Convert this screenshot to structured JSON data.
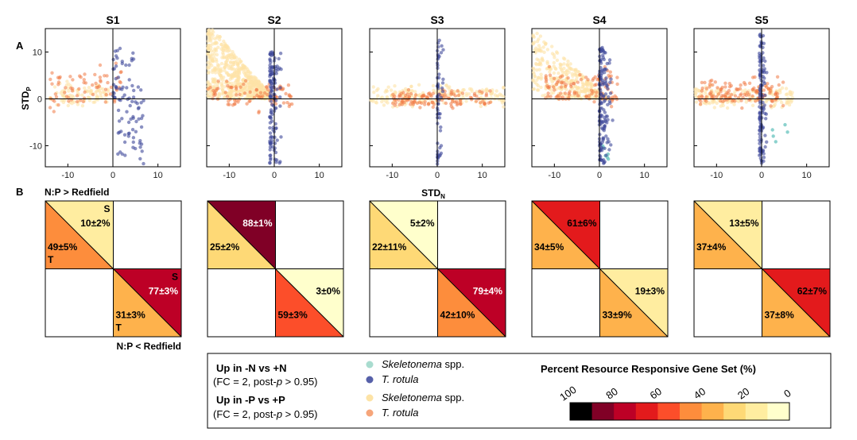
{
  "figure": {
    "panel_a_label": "A",
    "panel_b_label": "B",
    "x_axis_label": "STD",
    "x_axis_sub": "N",
    "y_axis_label": "STD",
    "y_axis_sub": "P",
    "heat_top_label": "N:P > Redfield",
    "heat_bottom_label": "N:P < Redfield",
    "s_marker": "S",
    "t_marker": "T"
  },
  "legend": {
    "n_title": "Up in -N vs +N",
    "n_sub_pre": "(FC = 2, post-",
    "n_sub_p": "p",
    "n_sub_post": " > 0.95)",
    "p_title": "Up in -P vs +P",
    "p_sub_pre": "(FC = 2, post-",
    "p_sub_p": "p",
    "p_sub_post": " > 0.95)",
    "entries": [
      {
        "italic": "Skeletonema",
        "rest": " spp.",
        "color": "#a9dccf"
      },
      {
        "italic": "T. rotula",
        "rest": "",
        "color": "#5660a9"
      },
      {
        "italic": "Skeletonema",
        "rest": " spp.",
        "color": "#fde3a6"
      },
      {
        "italic": "T. rotula",
        "rest": "",
        "color": "#f6a57a"
      }
    ],
    "colorbar_title": "Percent Resource Responsive Gene Set (%)",
    "colorbar_ticks": [
      "100",
      "80",
      "60",
      "40",
      "20",
      "0"
    ],
    "colorbar_colors": [
      "#000000",
      "#800026",
      "#bd0026",
      "#e31a1c",
      "#fc4e2a",
      "#fd8d3c",
      "#feb24c",
      "#fed976",
      "#ffeda0",
      "#ffffcc"
    ]
  },
  "chart_data": {
    "type": "scatter",
    "xlabel": "STD_N",
    "ylabel": "STD_P",
    "xlim": [
      -15,
      15
    ],
    "ylim": [
      -14.5,
      15
    ],
    "xticks": [
      -10,
      0,
      10
    ],
    "yticks": [
      10,
      0,
      -10
    ],
    "panels": [
      {
        "title": "S1",
        "heat": {
          "ul_s": "10±2%",
          "ul_t": "49±5%",
          "lr_s": "77±3%",
          "lr_t": "31±3%",
          "ul_s_v": 10,
          "ul_t_v": 49,
          "lr_s_v": 77,
          "lr_t_v": 31
        },
        "p_skel": {
          "n": 90,
          "x": [
            -14,
            -1
          ],
          "y": [
            -2,
            4
          ]
        },
        "p_trot": {
          "n": 70,
          "x": [
            -14,
            2
          ],
          "y": [
            -3,
            8
          ]
        },
        "n_trot": {
          "n": 90,
          "x": [
            0,
            7
          ],
          "y": [
            -14,
            11
          ]
        },
        "n_skel": {
          "n": 0,
          "x": [
            0,
            1
          ],
          "y": [
            0,
            1
          ]
        }
      },
      {
        "title": "S2",
        "heat": {
          "ul_s": "88±1%",
          "ul_t": "25±2%",
          "lr_s": "3±0%",
          "lr_t": "59±3%",
          "ul_s_v": 88,
          "ul_t_v": 25,
          "lr_s_v": 3,
          "lr_t_v": 59
        },
        "p_skel": {
          "n": 700,
          "x": [
            -15,
            0
          ],
          "y": [
            0,
            15
          ]
        },
        "p_trot": {
          "n": 90,
          "x": [
            -15,
            4
          ],
          "y": [
            -3,
            4
          ]
        },
        "n_trot": {
          "n": 130,
          "x": [
            -1,
            2
          ],
          "y": [
            -14,
            10
          ]
        },
        "n_skel": {
          "n": 0,
          "x": [
            0,
            1
          ],
          "y": [
            0,
            1
          ]
        }
      },
      {
        "title": "S3",
        "heat": {
          "ul_s": "5±2%",
          "ul_t": "22±11%",
          "lr_s": "79±4%",
          "lr_t": "42±10%",
          "ul_s_v": 5,
          "ul_t_v": 22,
          "lr_s_v": 79,
          "lr_t_v": 42
        },
        "p_skel": {
          "n": 200,
          "x": [
            -15,
            15
          ],
          "y": [
            -2,
            3
          ]
        },
        "p_trot": {
          "n": 120,
          "x": [
            -10,
            12
          ],
          "y": [
            -2,
            2
          ]
        },
        "n_trot": {
          "n": 60,
          "x": [
            0,
            1.5
          ],
          "y": [
            -14,
            13
          ]
        },
        "n_skel": {
          "n": 0,
          "x": [
            0,
            1
          ],
          "y": [
            0,
            1
          ]
        }
      },
      {
        "title": "S4",
        "heat": {
          "ul_s": "61±6%",
          "ul_t": "34±5%",
          "lr_s": "19±3%",
          "lr_t": "33±9%",
          "ul_s_v": 61,
          "ul_t_v": 34,
          "lr_s_v": 19,
          "lr_t_v": 33
        },
        "p_skel": {
          "n": 350,
          "x": [
            -15,
            2
          ],
          "y": [
            0,
            14
          ]
        },
        "p_trot": {
          "n": 110,
          "x": [
            -12,
            4
          ],
          "y": [
            -2,
            7
          ]
        },
        "n_trot": {
          "n": 150,
          "x": [
            0,
            3
          ],
          "y": [
            -14,
            11
          ]
        },
        "n_skel": {
          "n": 6,
          "x": [
            0.5,
            2
          ],
          "y": [
            -14,
            -9
          ]
        }
      },
      {
        "title": "S5",
        "heat": {
          "ul_s": "13±5%",
          "ul_t": "37±4%",
          "lr_s": "62±7%",
          "lr_t": "37±8%",
          "ul_s_v": 13,
          "ul_t_v": 37,
          "lr_s_v": 62,
          "lr_t_v": 37
        },
        "p_skel": {
          "n": 180,
          "x": [
            -15,
            7
          ],
          "y": [
            -2,
            3
          ]
        },
        "p_trot": {
          "n": 130,
          "x": [
            -14,
            5
          ],
          "y": [
            -2,
            5
          ]
        },
        "n_trot": {
          "n": 130,
          "x": [
            -0.5,
            1.5
          ],
          "y": [
            -14,
            14
          ]
        },
        "n_skel": {
          "n": 5,
          "x": [
            0,
            6
          ],
          "y": [
            -11,
            -2
          ]
        }
      }
    ]
  }
}
